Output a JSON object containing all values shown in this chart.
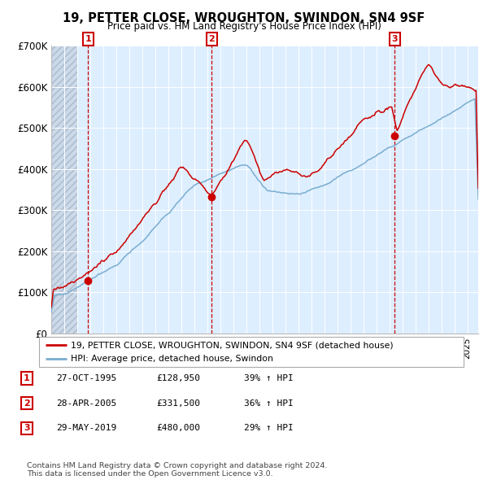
{
  "title": "19, PETTER CLOSE, WROUGHTON, SWINDON, SN4 9SF",
  "subtitle": "Price paid vs. HM Land Registry's House Price Index (HPI)",
  "legend_line1": "19, PETTER CLOSE, WROUGHTON, SWINDON, SN4 9SF (detached house)",
  "legend_line2": "HPI: Average price, detached house, Swindon",
  "sale_years_decimal": [
    1995.831,
    2005.329,
    2019.413
  ],
  "sale_prices": [
    128950,
    331500,
    480000
  ],
  "sale_labels": [
    "1",
    "2",
    "3"
  ],
  "table_rows": [
    [
      "1",
      "27-OCT-1995",
      "£128,950",
      "39% ↑ HPI"
    ],
    [
      "2",
      "28-APR-2005",
      "£331,500",
      "36% ↑ HPI"
    ],
    [
      "3",
      "29-MAY-2019",
      "£480,000",
      "29% ↑ HPI"
    ]
  ],
  "footer": "Contains HM Land Registry data © Crown copyright and database right 2024.\nThis data is licensed under the Open Government Licence v3.0.",
  "red_color": "#cc0000",
  "blue_color": "#7aadd0",
  "bg_color": "#ddeeff",
  "grid_color": "#ffffff",
  "ylim": [
    0,
    700000
  ],
  "yticks": [
    0,
    100000,
    200000,
    300000,
    400000,
    500000,
    600000,
    700000
  ],
  "ytick_labels": [
    "£0",
    "£100K",
    "£200K",
    "£300K",
    "£400K",
    "£500K",
    "£600K",
    "£700K"
  ],
  "xlim_start": 1993.0,
  "xlim_end": 2025.83,
  "hatch_end": 1995.0
}
